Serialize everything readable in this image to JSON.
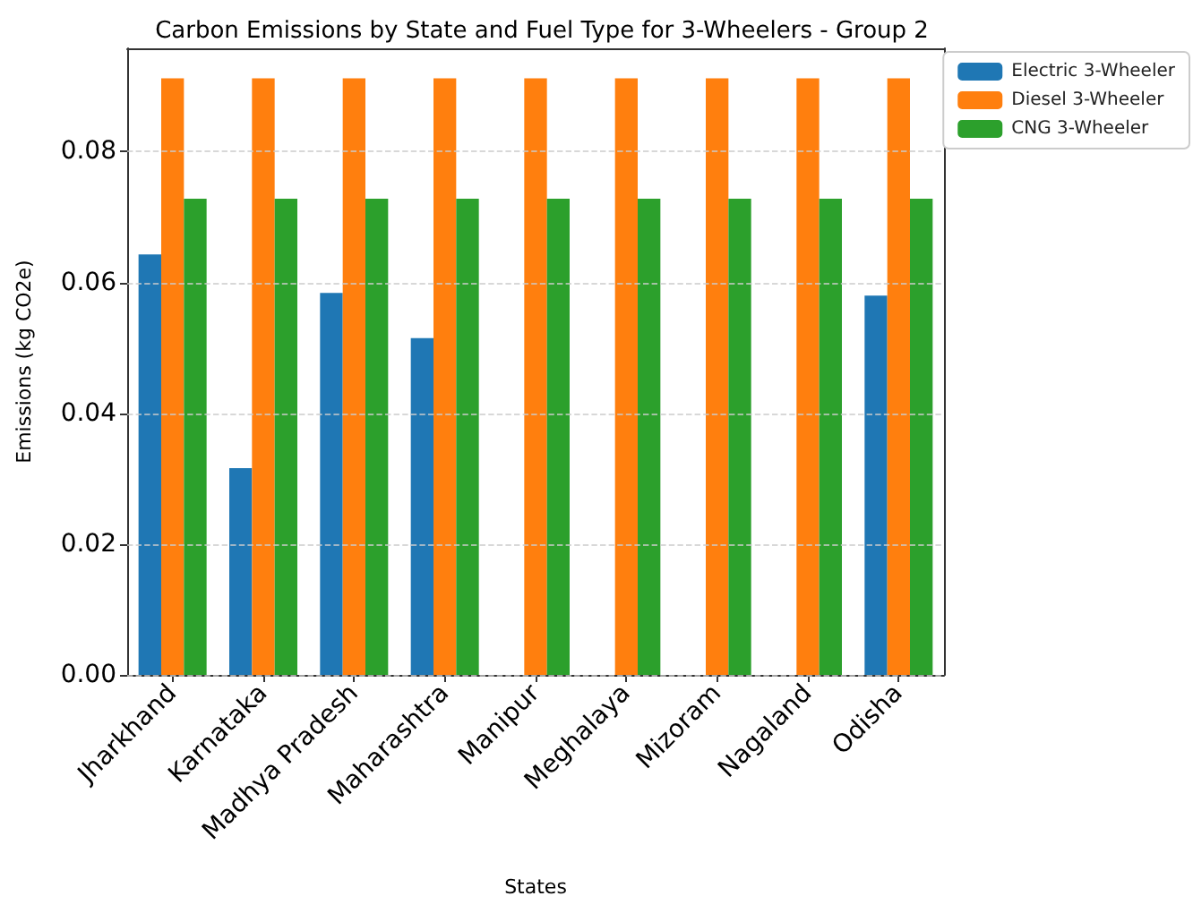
{
  "chart_data": {
    "type": "bar",
    "title": "Carbon Emissions by State and Fuel Type for 3-Wheelers - Group 2",
    "xlabel": "States",
    "ylabel": "Emissions (kg CO2e)",
    "categories": [
      "Jharkhand",
      "Karnataka",
      "Madhya Pradesh",
      "Maharashtra",
      "Manipur",
      "Meghalaya",
      "Mizoram",
      "Nagaland",
      "Odisha"
    ],
    "series": [
      {
        "name": "Electric 3-Wheeler",
        "color": "#1f77b4",
        "values": [
          0.0643,
          0.0316,
          0.0584,
          0.0515,
          null,
          null,
          null,
          null,
          0.058
        ]
      },
      {
        "name": "Diesel 3-Wheeler",
        "color": "#ff7f0e",
        "values": [
          0.0912,
          0.0912,
          0.0912,
          0.0912,
          0.0912,
          0.0912,
          0.0912,
          0.0912,
          0.0912
        ]
      },
      {
        "name": "CNG 3-Wheeler",
        "color": "#2ca02c",
        "values": [
          0.0728,
          0.0728,
          0.0728,
          0.0728,
          0.0728,
          0.0728,
          0.0728,
          0.0728,
          0.0728
        ]
      }
    ],
    "ylim": [
      0,
      0.0958
    ],
    "yticks": [
      {
        "value": 0,
        "label": "0.00"
      },
      0.02,
      0.04,
      0.06,
      0.08
    ],
    "grid": "y",
    "legend": "top right"
  }
}
